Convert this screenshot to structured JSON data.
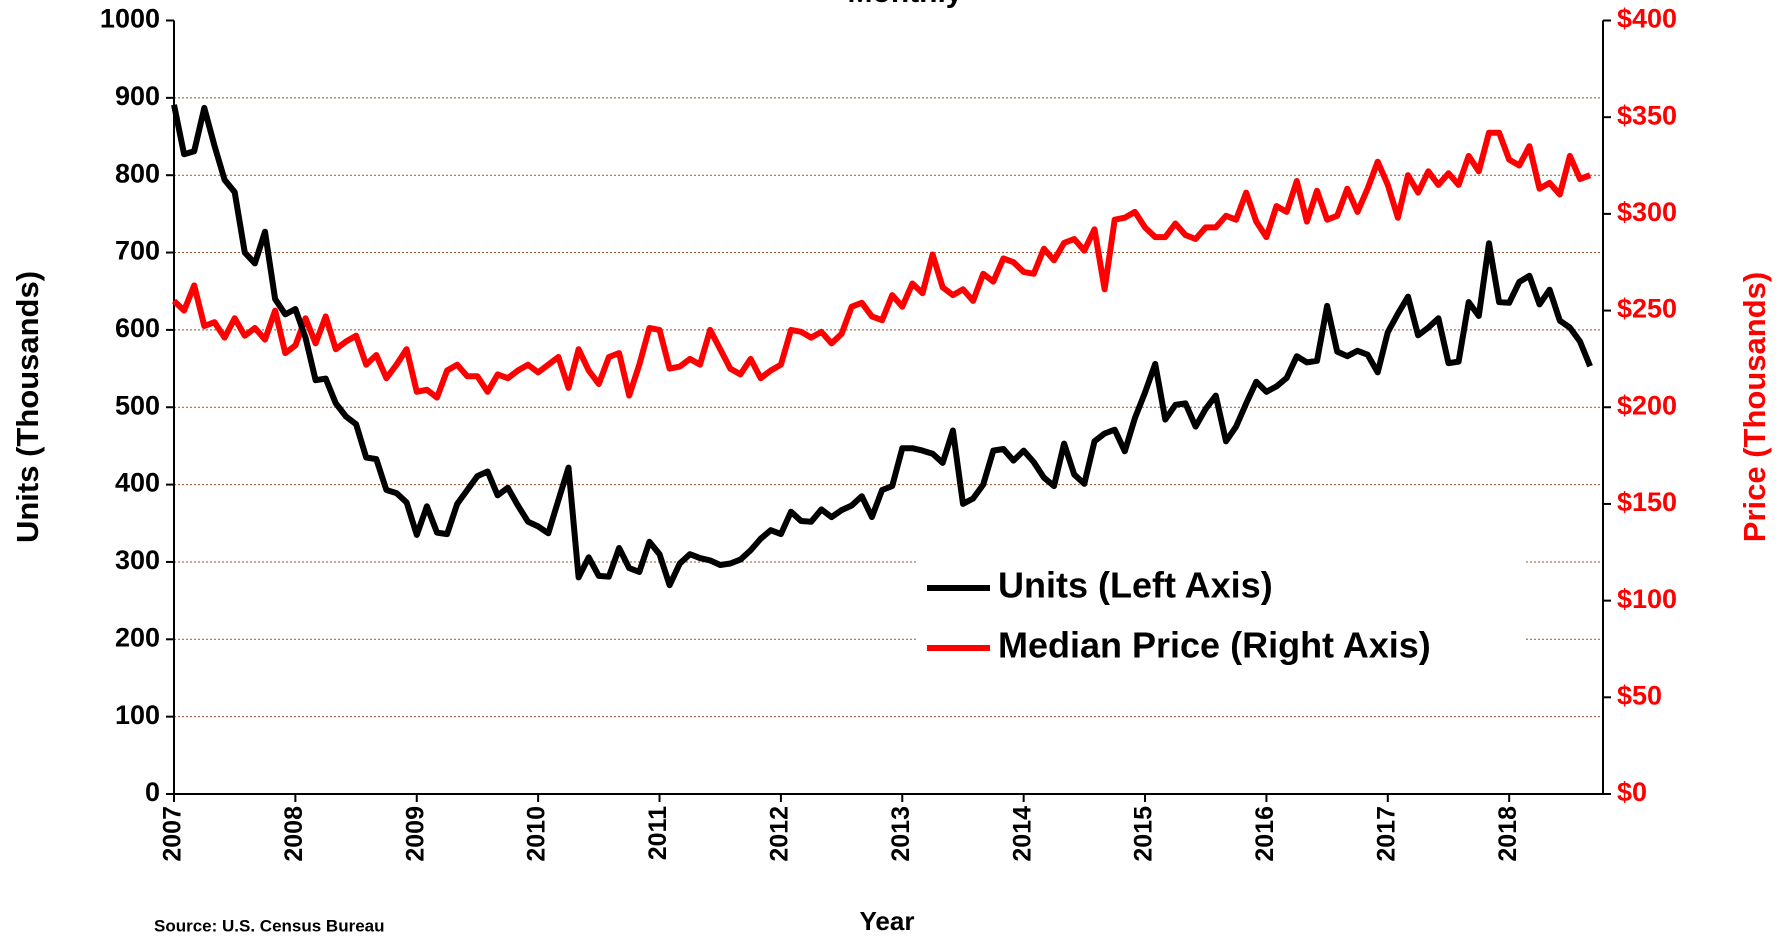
{
  "chart_data": {
    "type": "line",
    "title": "Monthly",
    "x_label": "Year",
    "y_label": "Units (Thousands)",
    "y2_label": "Price (Thousands)",
    "source": "Source: U.S. Census Bureau",
    "categories": [
      "2007",
      null,
      null,
      null,
      null,
      null,
      null,
      null,
      null,
      null,
      null,
      null,
      "2008",
      null,
      null,
      null,
      null,
      null,
      null,
      null,
      null,
      null,
      null,
      null,
      "2009",
      null,
      null,
      null,
      null,
      null,
      null,
      null,
      null,
      null,
      null,
      null,
      "2010",
      null,
      null,
      null,
      null,
      null,
      null,
      null,
      null,
      null,
      null,
      null,
      "2011",
      null,
      null,
      null,
      null,
      null,
      null,
      null,
      null,
      null,
      null,
      null,
      "2012",
      null,
      null,
      null,
      null,
      null,
      null,
      null,
      null,
      null,
      null,
      null,
      "2013",
      null,
      null,
      null,
      null,
      null,
      null,
      null,
      null,
      null,
      null,
      null,
      "2014",
      null,
      null,
      null,
      null,
      null,
      null,
      null,
      null,
      null,
      null,
      null,
      "2015",
      null,
      null,
      null,
      null,
      null,
      null,
      null,
      null,
      null,
      null,
      null,
      "2016",
      null,
      null,
      null,
      null,
      null,
      null,
      null,
      null,
      null,
      null,
      null,
      "2017",
      null,
      null,
      null,
      null,
      null,
      null,
      null,
      null,
      null,
      null,
      null,
      "2018",
      null,
      null,
      null,
      null,
      null,
      null,
      null,
      null
    ],
    "series": [
      {
        "name": "Units (Left Axis)",
        "color": "#000000",
        "axis": "y",
        "values": [
          891,
          827,
          831,
          887,
          838,
          794,
          778,
          700,
          686,
          727,
          640,
          620,
          627,
          590,
          535,
          537,
          505,
          488,
          478,
          435,
          433,
          393,
          389,
          377,
          335,
          372,
          338,
          336,
          375,
          393,
          411,
          417,
          386,
          396,
          373,
          352,
          346,
          337,
          380,
          422,
          280,
          306,
          282,
          281,
          318,
          292,
          287,
          326,
          310,
          270,
          298,
          310,
          305,
          302,
          296,
          298,
          303,
          315,
          330,
          341,
          336,
          365,
          353,
          352,
          368,
          358,
          367,
          373,
          385,
          358,
          393,
          398,
          447,
          447,
          444,
          440,
          428,
          470,
          375,
          382,
          400,
          444,
          446,
          431,
          444,
          429,
          409,
          398,
          453,
          413,
          401,
          456,
          466,
          471,
          443,
          486,
          519,
          556,
          484,
          503,
          505,
          475,
          498,
          515,
          456,
          475,
          505,
          533,
          520,
          527,
          538,
          566,
          558,
          560,
          631,
          572,
          566,
          573,
          568,
          545,
          597,
          621,
          643,
          593,
          603,
          615,
          557,
          559,
          636,
          618,
          712,
          636,
          635,
          662,
          670,
          633,
          652,
          612,
          603,
          585,
          553
        ]
      },
      {
        "name": "Median Price (Right Axis)",
        "color": "#ff0000",
        "axis": "y2",
        "values": [
          255,
          250,
          263,
          242,
          244,
          236,
          246,
          237,
          241,
          235,
          250,
          228,
          232,
          246,
          233,
          247,
          230,
          234,
          237,
          222,
          227,
          215,
          222,
          230,
          208,
          209,
          205,
          219,
          222,
          216,
          216,
          208,
          217,
          215,
          219,
          222,
          218,
          222,
          226,
          210,
          230,
          219,
          212,
          226,
          228,
          206,
          222,
          241,
          240,
          220,
          221,
          225,
          222,
          240,
          230,
          220,
          217,
          225,
          215,
          219,
          222,
          240,
          239,
          236,
          239,
          233,
          238,
          252,
          254,
          247,
          245,
          258,
          252,
          264,
          259,
          279,
          262,
          258,
          261,
          255,
          269,
          265,
          277,
          275,
          270,
          269,
          282,
          276,
          285,
          287,
          281,
          292,
          261,
          297,
          298,
          301,
          293,
          288,
          288,
          295,
          289,
          287,
          293,
          293,
          299,
          297,
          311,
          296,
          288,
          304,
          301,
          317,
          296,
          312,
          297,
          299,
          313,
          301,
          313,
          327,
          315,
          298,
          320,
          311,
          322,
          315,
          321,
          315,
          330,
          322,
          342,
          342,
          328,
          325,
          335,
          313,
          316,
          310,
          330,
          318,
          320
        ]
      }
    ],
    "ylim": [
      0,
      1000
    ],
    "yticks": [
      0,
      100,
      200,
      300,
      400,
      500,
      600,
      700,
      800,
      900,
      1000
    ],
    "y2lim": [
      0,
      400
    ],
    "y2ticks": [
      {
        "value": 0,
        "label": "$0"
      },
      {
        "value": 50,
        "label": "$50"
      },
      {
        "value": 100,
        "label": "$100"
      },
      {
        "value": 150,
        "label": "$150"
      },
      {
        "value": 200,
        "label": "$200"
      },
      {
        "value": 250,
        "label": "$250"
      },
      {
        "value": 300,
        "label": "$300"
      },
      {
        "value": 350,
        "label": "$350"
      },
      {
        "value": 400,
        "label": "$400"
      }
    ],
    "grid": true
  }
}
